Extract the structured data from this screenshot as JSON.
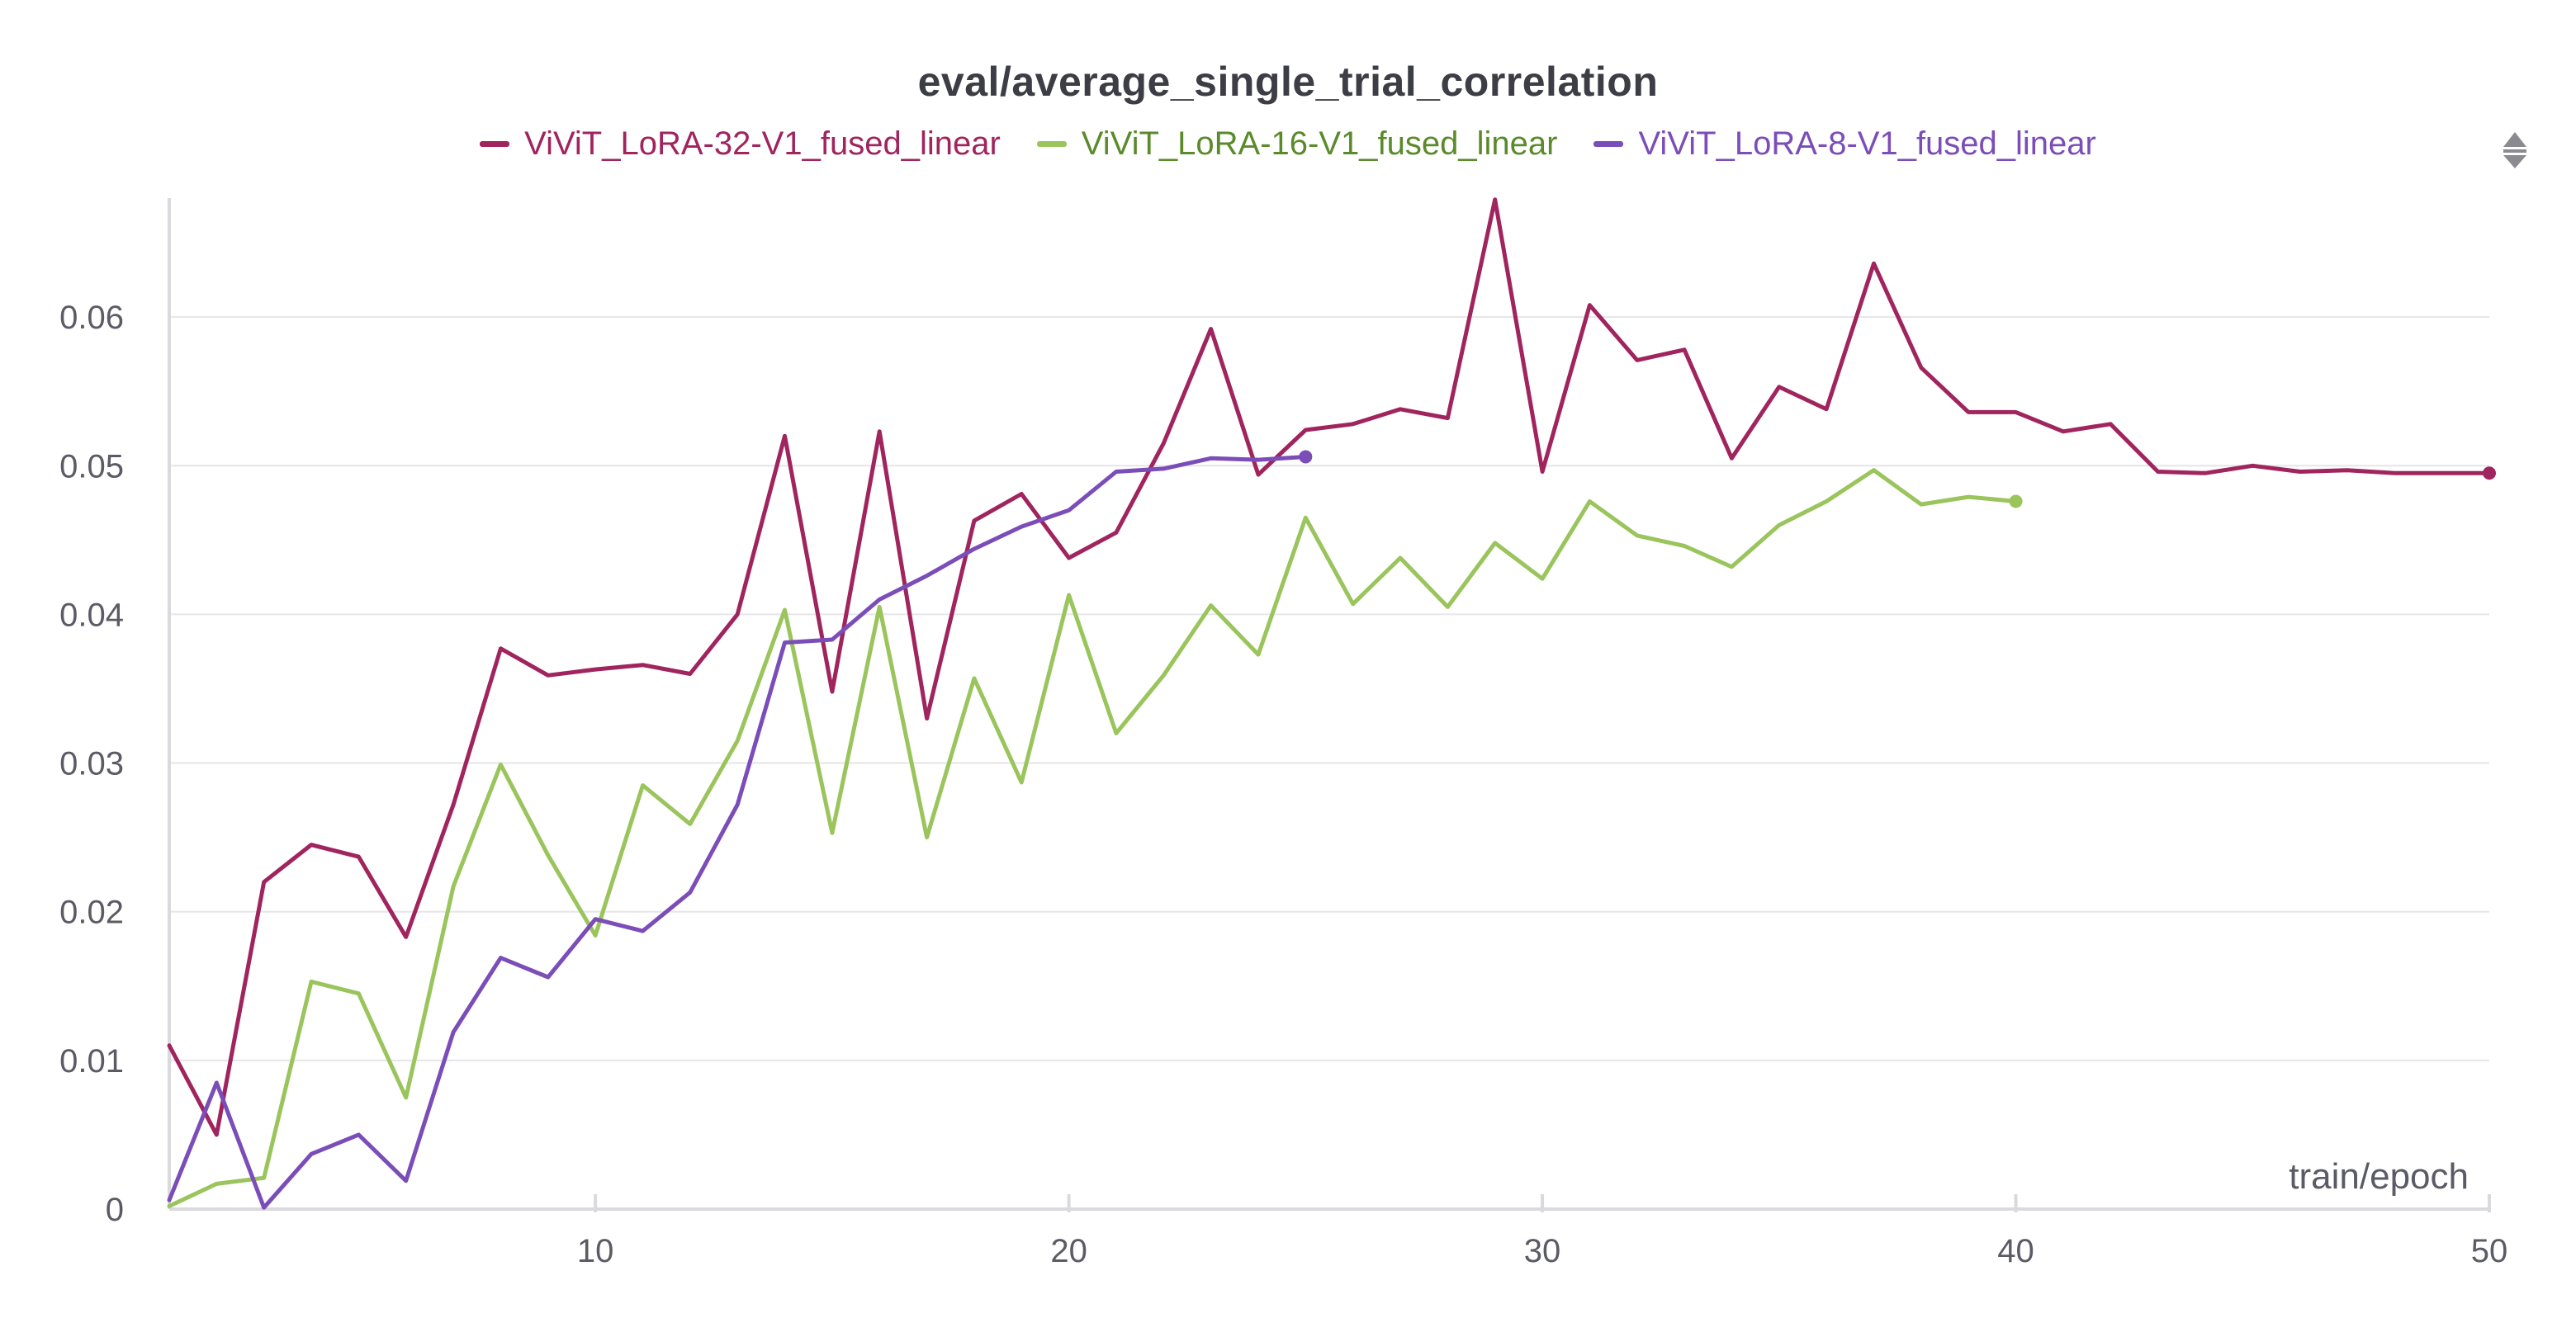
{
  "chart_data": {
    "type": "line",
    "title": "eval/average_single_trial_correlation",
    "xlabel": "train/epoch",
    "ylabel": "",
    "xlim": [
      1,
      50
    ],
    "ylim": [
      0,
      0.068
    ],
    "xticks": [
      10,
      20,
      30,
      40,
      50
    ],
    "yticks": [
      0,
      0.01,
      0.02,
      0.03,
      0.04,
      0.05,
      0.06
    ],
    "ytick_labels": [
      "0",
      "0.01",
      "0.02",
      "0.03",
      "0.04",
      "0.05",
      "0.06"
    ],
    "grid": "horizontal",
    "legend_position": "top-center",
    "series": [
      {
        "name": "ViViT_LoRA-32-V1_fused_linear",
        "color": "#a0245e",
        "legend_text_color": "#a0245e",
        "end_marker": true,
        "x": [
          1,
          2,
          3,
          4,
          5,
          6,
          7,
          8,
          9,
          10,
          11,
          12,
          13,
          14,
          15,
          16,
          17,
          18,
          19,
          20,
          21,
          22,
          23,
          24,
          25,
          26,
          27,
          28,
          29,
          30,
          31,
          32,
          33,
          34,
          35,
          36,
          37,
          38,
          39,
          40,
          41,
          42,
          43,
          44,
          45,
          46,
          47,
          48,
          49,
          50
        ],
        "values": [
          0.011,
          0.005,
          0.022,
          0.0245,
          0.0237,
          0.0183,
          0.0272,
          0.0377,
          0.0359,
          0.0363,
          0.0366,
          0.036,
          0.04,
          0.052,
          0.0348,
          0.0523,
          0.033,
          0.0463,
          0.0481,
          0.0438,
          0.0455,
          0.0515,
          0.0592,
          0.0494,
          0.0524,
          0.0528,
          0.0538,
          0.0532,
          0.0679,
          0.0496,
          0.0608,
          0.0571,
          0.0578,
          0.0505,
          0.0553,
          0.0538,
          0.0636,
          0.0566,
          0.0536,
          0.0536,
          0.0523,
          0.0528,
          0.0496,
          0.0495,
          0.05,
          0.0496,
          0.0497,
          0.0495,
          0.0495,
          0.0495
        ]
      },
      {
        "name": "ViViT_LoRA-16-V1_fused_linear",
        "color": "#9ac45c",
        "legend_text_color": "#5a8a2a",
        "end_marker": true,
        "x": [
          1,
          2,
          3,
          4,
          5,
          6,
          7,
          8,
          9,
          10,
          11,
          12,
          13,
          14,
          15,
          16,
          17,
          18,
          19,
          20,
          21,
          22,
          23,
          24,
          25,
          26,
          27,
          28,
          29,
          30,
          31,
          32,
          33,
          34,
          35,
          36,
          37,
          38,
          39,
          40
        ],
        "values": [
          0.0002,
          0.0017,
          0.0021,
          0.0153,
          0.0145,
          0.0075,
          0.0217,
          0.0299,
          0.0238,
          0.0184,
          0.0285,
          0.0259,
          0.0315,
          0.0403,
          0.0253,
          0.0405,
          0.025,
          0.0357,
          0.0287,
          0.0413,
          0.032,
          0.0359,
          0.0406,
          0.0373,
          0.0465,
          0.0407,
          0.0438,
          0.0405,
          0.0448,
          0.0424,
          0.0476,
          0.0453,
          0.0446,
          0.0432,
          0.046,
          0.0476,
          0.0497,
          0.0474,
          0.0479,
          0.0476
        ]
      },
      {
        "name": "ViViT_LoRA-8-V1_fused_linear",
        "color": "#7b4db8",
        "legend_text_color": "#7b4db8",
        "end_marker": true,
        "x": [
          1,
          2,
          3,
          4,
          5,
          6,
          7,
          8,
          9,
          10,
          11,
          12,
          13,
          14,
          15,
          16,
          17,
          18,
          19,
          20,
          21,
          22,
          23,
          24,
          25
        ],
        "values": [
          0.0006,
          0.0085,
          0.0001,
          0.0037,
          0.005,
          0.0019,
          0.0119,
          0.0169,
          0.0156,
          0.0195,
          0.0187,
          0.0213,
          0.0272,
          0.0381,
          0.0383,
          0.041,
          0.0426,
          0.0444,
          0.0459,
          0.047,
          0.0496,
          0.0498,
          0.0505,
          0.0504,
          0.0506
        ]
      }
    ]
  }
}
